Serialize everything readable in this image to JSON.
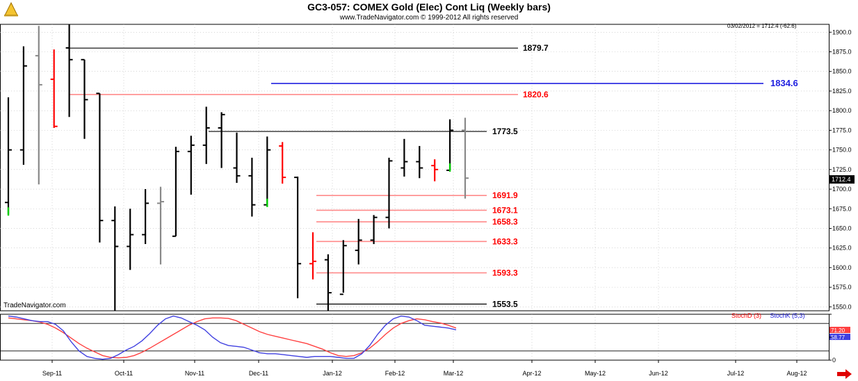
{
  "header": {
    "title": "GC3-057:  COMEX Gold (Elec) Cont Liq  (Weekly bars)",
    "subtitle": "www.TradeNavigator.com © 1999-2012 All rights reserved"
  },
  "watermark": "TradeNavigator.com",
  "date_info": "03/02/2012 = 1712.4 (-62.6)",
  "last_price_label": "1712.4",
  "stoch_legend": {
    "d": "StochD (3)",
    "k": "StochK (5,3)"
  },
  "stoch_values": {
    "d": "71.20",
    "k": "58.77"
  },
  "colors": {
    "black": "#000000",
    "red": "#ff0000",
    "gray": "#888888",
    "green": "#00cc00",
    "blue": "#2020e0",
    "hline_red": "#ff8a8a",
    "stoch_d": "#ff4040",
    "stoch_k": "#4040e0"
  },
  "chart_data": {
    "type": "ohlc",
    "x_labels": [
      "Sep-11",
      "Oct-11",
      "Nov-11",
      "Dec-11",
      "Jan-12",
      "Feb-12",
      "Mar-12",
      "Apr-12",
      "May-12",
      "Jun-12",
      "Jul-12",
      "Aug-12"
    ],
    "y_ticks": [
      1550.0,
      1575.0,
      1600.0,
      1625.0,
      1650.0,
      1675.0,
      1700.0,
      1725.0,
      1750.0,
      1775.0,
      1800.0,
      1825.0,
      1850.0,
      1875.0,
      1900.0
    ],
    "ylim": [
      1545,
      1910
    ],
    "bars": [
      {
        "o": 1683,
        "h": 1817,
        "l": 1668,
        "c": 1750,
        "color": "black",
        "mark": "green"
      },
      {
        "o": 1750,
        "h": 1882,
        "l": 1731,
        "c": 1857,
        "color": "black"
      },
      {
        "o": 1870,
        "h": 1908,
        "l": 1706,
        "c": 1833,
        "color": "gray"
      },
      {
        "o": 1840,
        "h": 1878,
        "l": 1778,
        "c": 1780,
        "color": "red"
      },
      {
        "o": 1880,
        "h": 1910,
        "l": 1792,
        "c": 1865,
        "color": "black"
      },
      {
        "o": 1865,
        "h": 1865,
        "l": 1764,
        "c": 1814,
        "color": "black"
      },
      {
        "o": 1822,
        "h": 1822,
        "l": 1632,
        "c": 1660,
        "color": "black"
      },
      {
        "o": 1660,
        "h": 1678,
        "l": 1545,
        "c": 1627,
        "color": "black"
      },
      {
        "o": 1627,
        "h": 1675,
        "l": 1597,
        "c": 1642,
        "color": "black"
      },
      {
        "o": 1642,
        "h": 1700,
        "l": 1630,
        "c": 1682,
        "color": "black"
      },
      {
        "o": 1682,
        "h": 1703,
        "l": 1604,
        "c": 1684,
        "color": "gray"
      },
      {
        "o": 1640,
        "h": 1754,
        "l": 1640,
        "c": 1748,
        "color": "black"
      },
      {
        "o": 1748,
        "h": 1768,
        "l": 1693,
        "c": 1756,
        "color": "black"
      },
      {
        "o": 1756,
        "h": 1805,
        "l": 1732,
        "c": 1778,
        "color": "black"
      },
      {
        "o": 1778,
        "h": 1798,
        "l": 1727,
        "c": 1795,
        "color": "black"
      },
      {
        "o": 1727,
        "h": 1772,
        "l": 1708,
        "c": 1717,
        "color": "black"
      },
      {
        "o": 1717,
        "h": 1740,
        "l": 1665,
        "c": 1680,
        "color": "black"
      },
      {
        "o": 1680,
        "h": 1767,
        "l": 1679,
        "c": 1750,
        "color": "black",
        "mark": "green"
      },
      {
        "o": 1755,
        "h": 1760,
        "l": 1707,
        "c": 1715,
        "color": "red"
      },
      {
        "o": 1715,
        "h": 1716,
        "l": 1561,
        "c": 1605,
        "color": "black"
      },
      {
        "o": 1605,
        "h": 1645,
        "l": 1585,
        "c": 1608,
        "color": "red"
      },
      {
        "o": 1610,
        "h": 1617,
        "l": 1545,
        "c": 1568,
        "color": "black"
      },
      {
        "o": 1566,
        "h": 1635,
        "l": 1568,
        "c": 1628,
        "color": "black"
      },
      {
        "o": 1622,
        "h": 1662,
        "l": 1604,
        "c": 1635,
        "color": "black"
      },
      {
        "o": 1635,
        "h": 1667,
        "l": 1630,
        "c": 1664,
        "color": "black"
      },
      {
        "o": 1664,
        "h": 1740,
        "l": 1650,
        "c": 1736,
        "color": "black"
      },
      {
        "o": 1727,
        "h": 1764,
        "l": 1716,
        "c": 1735,
        "color": "black"
      },
      {
        "o": 1735,
        "h": 1755,
        "l": 1714,
        "c": 1727,
        "color": "black"
      },
      {
        "o": 1730,
        "h": 1738,
        "l": 1710,
        "c": 1725,
        "color": "red"
      },
      {
        "o": 1724,
        "h": 1789,
        "l": 1724,
        "c": 1775,
        "color": "black",
        "mark": "green"
      },
      {
        "o": 1775,
        "h": 1791,
        "l": 1688,
        "c": 1714,
        "color": "gray"
      }
    ],
    "levels": [
      {
        "value": 1879.7,
        "color": "black",
        "label": "1879.7"
      },
      {
        "value": 1834.6,
        "color": "blue",
        "label": "1834.6"
      },
      {
        "value": 1820.6,
        "color": "red",
        "label": "1820.6"
      },
      {
        "value": 1773.5,
        "color": "black",
        "label": "1773.5"
      },
      {
        "value": 1691.9,
        "color": "red",
        "label": "1691.9"
      },
      {
        "value": 1673.1,
        "color": "red",
        "label": "1673.1"
      },
      {
        "value": 1658.3,
        "color": "red",
        "label": "1658.3"
      },
      {
        "value": 1633.3,
        "color": "red",
        "label": "1633.3"
      },
      {
        "value": 1593.3,
        "color": "red",
        "label": "1593.3"
      },
      {
        "value": 1553.5,
        "color": "black",
        "label": "1553.5"
      }
    ],
    "stochastics": {
      "ylim": [
        0,
        100
      ],
      "reference_lines": [
        20,
        80
      ],
      "d": [
        92,
        90,
        88,
        86,
        83,
        78,
        70,
        60,
        48,
        36,
        26,
        18,
        10,
        6,
        5,
        6,
        10,
        17,
        26,
        36,
        46,
        56,
        66,
        76,
        84,
        90,
        92,
        92,
        91,
        86,
        78,
        70,
        62,
        56,
        52,
        48,
        44,
        40,
        36,
        30,
        24,
        16,
        10,
        8,
        10,
        16,
        26,
        40,
        56,
        70,
        80,
        86,
        90,
        88,
        84,
        81,
        76,
        70
      ],
      "k": [
        96,
        94,
        90,
        86,
        84,
        84,
        78,
        64,
        40,
        20,
        8,
        4,
        2,
        4,
        12,
        22,
        30,
        42,
        58,
        76,
        90,
        96,
        92,
        84,
        76,
        66,
        50,
        38,
        32,
        30,
        28,
        22,
        16,
        14,
        14,
        12,
        10,
        8,
        6,
        8,
        8,
        8,
        6,
        4,
        4,
        14,
        32,
        56,
        76,
        90,
        96,
        94,
        86,
        76,
        74,
        72,
        70,
        66
      ]
    }
  }
}
